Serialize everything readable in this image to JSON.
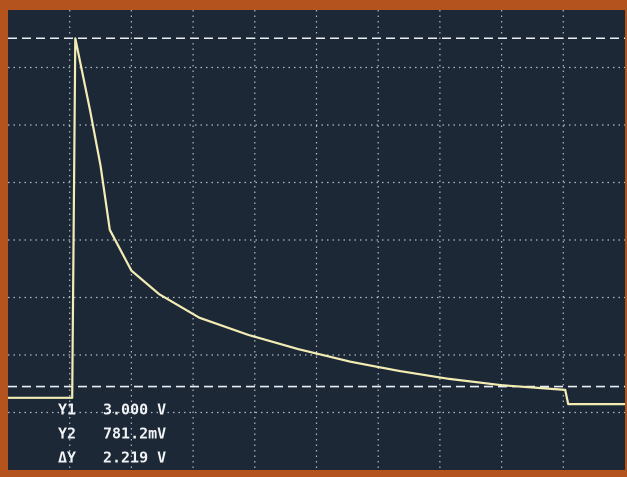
{
  "chart_data": {
    "type": "line",
    "x": [
      0,
      1.04,
      1.09,
      1.33,
      1.5,
      1.65,
      2,
      2.45,
      3.1,
      3.9,
      4.7,
      5.55,
      6.35,
      7.15,
      8,
      9.03,
      9.08,
      10
    ],
    "values": [
      0.71,
      0.71,
      3.0,
      2.54,
      2.19,
      1.78,
      1.52,
      1.37,
      1.22,
      1.11,
      1.02,
      0.94,
      0.88,
      0.83,
      0.79,
      0.76,
      0.67,
      0.67
    ],
    "color": "#f3edb4",
    "xlim": [
      0,
      10
    ],
    "ylim": [
      0.25,
      3.18
    ],
    "cursor_color": "#e8eef4",
    "cursors": [
      {
        "name": "Y1",
        "value": 3.0,
        "label": "3.000 V"
      },
      {
        "name": "Y2",
        "value": 0.7812,
        "label": "781.2mV"
      }
    ],
    "delta": {
      "name": "ΔY",
      "label": "2.219 V"
    }
  }
}
